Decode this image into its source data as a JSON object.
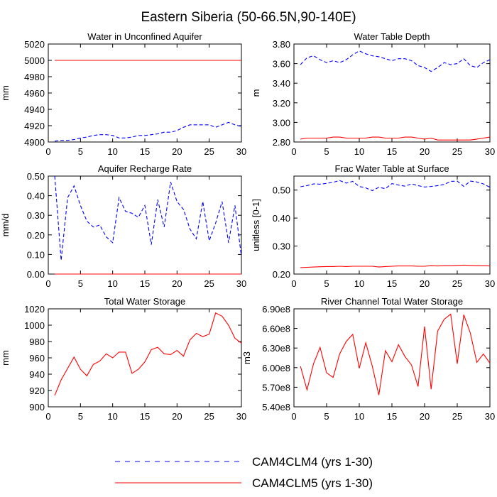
{
  "figure": {
    "title": "Eastern Siberia (50-66.5N,90-140E)"
  },
  "legend": {
    "entries": [
      {
        "label": "CAM4CLM4 (yrs 1-30)",
        "color": "#0000ff",
        "style": "dashed"
      },
      {
        "label": "CAM4CLM5 (yrs 1-30)",
        "color": "#ff0000",
        "style": "solid"
      }
    ],
    "placement": "bottom-center"
  },
  "chart_data": [
    {
      "type": "line",
      "title": "Water in Unconfined Aquifer",
      "ylabel": "mm",
      "xlim": [
        0,
        30
      ],
      "ylim": [
        4900,
        5020
      ],
      "xticks": [
        "0",
        "5",
        "10",
        "15",
        "20",
        "25",
        "30"
      ],
      "yticks": [
        "4900",
        "4920",
        "4940",
        "4960",
        "4980",
        "5000",
        "5020"
      ],
      "ytick_values": [
        4900,
        4920,
        4940,
        4960,
        4980,
        5000,
        5020
      ],
      "x": [
        1,
        2,
        3,
        4,
        5,
        6,
        7,
        8,
        9,
        10,
        11,
        12,
        13,
        14,
        15,
        16,
        17,
        18,
        19,
        20,
        21,
        22,
        23,
        24,
        25,
        26,
        27,
        28,
        29,
        30
      ],
      "series": [
        {
          "name": "CAM4CLM4 (yrs 1-30)",
          "color": "#0000ff",
          "style": "dashed",
          "values": [
            4901,
            4902,
            4902,
            4903,
            4905,
            4906,
            4908,
            4909,
            4909,
            4908,
            4905,
            4905,
            4906,
            4908,
            4908,
            4909,
            4910,
            4912,
            4912,
            4914,
            4918,
            4921,
            4921,
            4921,
            4921,
            4918,
            4921,
            4924,
            4921,
            4919
          ]
        },
        {
          "name": "CAM4CLM5 (yrs 1-30)",
          "color": "#ff0000",
          "style": "solid",
          "values": [
            5000,
            5000,
            5000,
            5000,
            5000,
            5000,
            5000,
            5000,
            5000,
            5000,
            5000,
            5000,
            5000,
            5000,
            5000,
            5000,
            5000,
            5000,
            5000,
            5000,
            5000,
            5000,
            5000,
            5000,
            5000,
            5000,
            5000,
            5000,
            5000,
            5000
          ]
        }
      ]
    },
    {
      "type": "line",
      "title": "Water Table Depth",
      "ylabel": "m",
      "xlim": [
        0,
        30
      ],
      "ylim": [
        2.8,
        3.8
      ],
      "xticks": [
        "0",
        "5",
        "10",
        "15",
        "20",
        "25",
        "30"
      ],
      "yticks": [
        "2.80",
        "3.00",
        "3.20",
        "3.40",
        "3.60",
        "3.80"
      ],
      "ytick_values": [
        2.8,
        3.0,
        3.2,
        3.4,
        3.6,
        3.8
      ],
      "x": [
        1,
        2,
        3,
        4,
        5,
        6,
        7,
        8,
        9,
        10,
        11,
        12,
        13,
        14,
        15,
        16,
        17,
        18,
        19,
        20,
        21,
        22,
        23,
        24,
        25,
        26,
        27,
        28,
        29,
        30
      ],
      "series": [
        {
          "name": "CAM4CLM4 (yrs 1-30)",
          "color": "#0000ff",
          "style": "dashed",
          "values": [
            3.59,
            3.66,
            3.68,
            3.64,
            3.61,
            3.63,
            3.61,
            3.64,
            3.69,
            3.73,
            3.7,
            3.68,
            3.67,
            3.65,
            3.63,
            3.65,
            3.65,
            3.63,
            3.58,
            3.56,
            3.52,
            3.56,
            3.61,
            3.59,
            3.6,
            3.65,
            3.58,
            3.56,
            3.61,
            3.64
          ]
        },
        {
          "name": "CAM4CLM5 (yrs 1-30)",
          "color": "#ff0000",
          "style": "solid",
          "values": [
            2.83,
            2.84,
            2.84,
            2.84,
            2.84,
            2.85,
            2.85,
            2.84,
            2.84,
            2.84,
            2.84,
            2.85,
            2.85,
            2.84,
            2.84,
            2.84,
            2.85,
            2.85,
            2.84,
            2.83,
            2.84,
            2.82,
            2.82,
            2.82,
            2.82,
            2.82,
            2.82,
            2.83,
            2.84,
            2.85
          ]
        }
      ]
    },
    {
      "type": "line",
      "title": "Aquifer Recharge Rate",
      "ylabel": "mm/d",
      "xlim": [
        0,
        30
      ],
      "ylim": [
        0,
        0.5
      ],
      "xticks": [
        "0",
        "5",
        "10",
        "15",
        "20",
        "25",
        "30"
      ],
      "yticks": [
        "0.00",
        "0.10",
        "0.20",
        "0.30",
        "0.40",
        "0.50"
      ],
      "ytick_values": [
        0,
        0.1,
        0.2,
        0.3,
        0.4,
        0.5
      ],
      "x": [
        1,
        2,
        3,
        4,
        5,
        6,
        7,
        8,
        9,
        10,
        11,
        12,
        13,
        14,
        15,
        16,
        17,
        18,
        19,
        20,
        21,
        22,
        23,
        24,
        25,
        26,
        27,
        28,
        29,
        30
      ],
      "series": [
        {
          "name": "CAM4CLM4 (yrs 1-30)",
          "color": "#0000ff",
          "style": "dashed",
          "values": [
            0.5,
            0.07,
            0.39,
            0.45,
            0.35,
            0.27,
            0.24,
            0.25,
            0.19,
            0.16,
            0.39,
            0.32,
            0.31,
            0.29,
            0.35,
            0.15,
            0.38,
            0.24,
            0.47,
            0.37,
            0.33,
            0.23,
            0.18,
            0.37,
            0.17,
            0.26,
            0.37,
            0.16,
            0.35,
            0.09
          ]
        },
        {
          "name": "CAM4CLM5 (yrs 1-30)",
          "color": "#ff0000",
          "style": "solid",
          "values": [
            0,
            0,
            0,
            0,
            0,
            0,
            0,
            0,
            0,
            0,
            0,
            0,
            0,
            0,
            0,
            0,
            0,
            0,
            0,
            0,
            0,
            0,
            0,
            0,
            0,
            0,
            0,
            0,
            0,
            0
          ]
        }
      ]
    },
    {
      "type": "line",
      "title": "Frac Water Table at Surface",
      "ylabel": "unitless [0-1]",
      "xlim": [
        0,
        30
      ],
      "ylim": [
        0.2,
        0.55
      ],
      "xticks": [
        "0",
        "5",
        "10",
        "15",
        "20",
        "25",
        "30"
      ],
      "yticks": [
        "0.20",
        "0.30",
        "0.40",
        "0.50"
      ],
      "ytick_values": [
        0.2,
        0.3,
        0.4,
        0.5
      ],
      "x": [
        1,
        2,
        3,
        4,
        5,
        6,
        7,
        8,
        9,
        10,
        11,
        12,
        13,
        14,
        15,
        16,
        17,
        18,
        19,
        20,
        21,
        22,
        23,
        24,
        25,
        26,
        27,
        28,
        29,
        30
      ],
      "series": [
        {
          "name": "CAM4CLM4 (yrs 1-30)",
          "color": "#0000ff",
          "style": "dashed",
          "values": [
            0.512,
            0.516,
            0.522,
            0.521,
            0.524,
            0.528,
            0.534,
            0.525,
            0.531,
            0.513,
            0.508,
            0.498,
            0.51,
            0.505,
            0.523,
            0.518,
            0.514,
            0.522,
            0.516,
            0.511,
            0.513,
            0.516,
            0.52,
            0.531,
            0.532,
            0.513,
            0.532,
            0.529,
            0.522,
            0.51
          ]
        },
        {
          "name": "CAM4CLM5 (yrs 1-30)",
          "color": "#ff0000",
          "style": "solid",
          "values": [
            0.223,
            0.224,
            0.225,
            0.226,
            0.227,
            0.227,
            0.228,
            0.227,
            0.228,
            0.228,
            0.228,
            0.228,
            0.225,
            0.227,
            0.228,
            0.229,
            0.229,
            0.229,
            0.228,
            0.228,
            0.23,
            0.229,
            0.23,
            0.23,
            0.231,
            0.232,
            0.231,
            0.23,
            0.23,
            0.229
          ]
        }
      ]
    },
    {
      "type": "line",
      "title": "Total Water Storage",
      "ylabel": "mm",
      "xlim": [
        0,
        30
      ],
      "ylim": [
        900,
        1020
      ],
      "xticks": [
        "0",
        "5",
        "10",
        "15",
        "20",
        "25",
        "30"
      ],
      "yticks": [
        "900",
        "920",
        "940",
        "960",
        "980",
        "1000",
        "1020"
      ],
      "ytick_values": [
        900,
        920,
        940,
        960,
        980,
        1000,
        1020
      ],
      "x": [
        1,
        2,
        3,
        4,
        5,
        6,
        7,
        8,
        9,
        10,
        11,
        12,
        13,
        14,
        15,
        16,
        17,
        18,
        19,
        20,
        21,
        22,
        23,
        24,
        25,
        26,
        27,
        28,
        29,
        30
      ],
      "series": [
        {
          "name": "CAM4CLM5 (yrs 1-30)",
          "color": "#ff0000",
          "style": "solid",
          "values": [
            914,
            933,
            947,
            961,
            946,
            938,
            952,
            956,
            965,
            960,
            967,
            967,
            941,
            946,
            955,
            970,
            973,
            965,
            964,
            969,
            962,
            982,
            990,
            986,
            989,
            1015,
            1011,
            1000,
            984,
            978
          ]
        }
      ]
    },
    {
      "type": "line",
      "title": "River Channel Total Water Storage",
      "ylabel": "m3",
      "xlim": [
        0,
        30
      ],
      "ylim": [
        540000000.0,
        690000000.0
      ],
      "xticks": [
        "0",
        "5",
        "10",
        "15",
        "20",
        "25",
        "30"
      ],
      "yticks": [
        "5.40e8",
        "5.70e8",
        "6.00e8",
        "6.30e8",
        "6.60e8",
        "6.90e8"
      ],
      "ytick_values": [
        540000000.0,
        570000000.0,
        600000000.0,
        630000000.0,
        660000000.0,
        690000000.0
      ],
      "x": [
        1,
        2,
        3,
        4,
        5,
        6,
        7,
        8,
        9,
        10,
        11,
        12,
        13,
        14,
        15,
        16,
        17,
        18,
        19,
        20,
        21,
        22,
        23,
        24,
        25,
        26,
        27,
        28,
        29,
        30
      ],
      "series": [
        {
          "name": "CAM4CLM5 (yrs 1-30)",
          "color": "#ff0000",
          "style": "solid",
          "values": [
            602000000.0,
            566000000.0,
            606000000.0,
            631000000.0,
            592000000.0,
            585000000.0,
            621000000.0,
            640000000.0,
            651000000.0,
            599000000.0,
            638000000.0,
            602000000.0,
            558000000.0,
            626000000.0,
            609000000.0,
            635000000.0,
            617000000.0,
            604000000.0,
            571000000.0,
            663000000.0,
            567000000.0,
            656000000.0,
            674000000.0,
            682000000.0,
            606000000.0,
            681000000.0,
            653000000.0,
            608000000.0,
            621000000.0,
            607000000.0
          ]
        }
      ]
    }
  ]
}
